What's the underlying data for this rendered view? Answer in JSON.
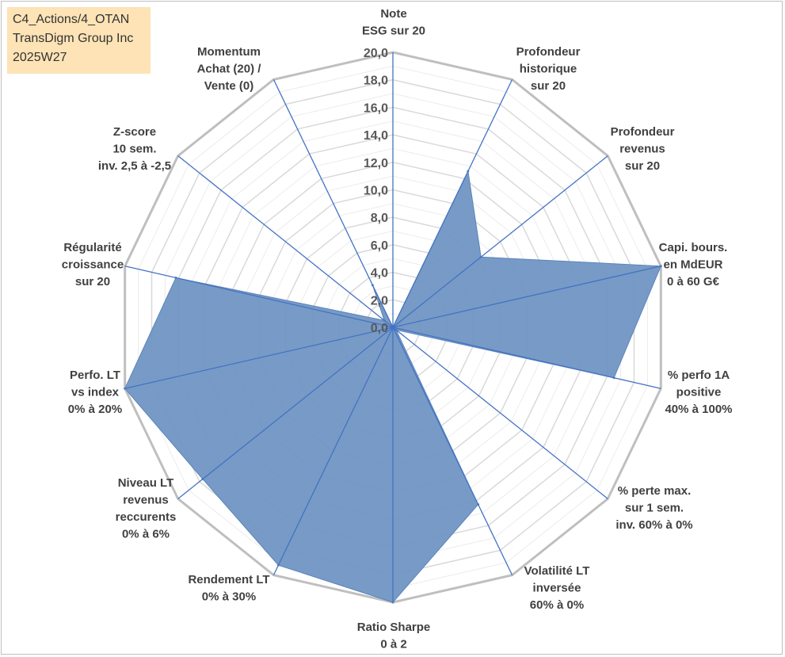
{
  "info": {
    "line1": "C4_Actions/4_OTAN",
    "line2": "TransDigm Group Inc",
    "line3": "2025W27"
  },
  "colors": {
    "fill": "#7096c3",
    "axis": "#4472c4",
    "outer_grid": "#bfbfbf",
    "inner_grid": "#d9d9d9"
  },
  "chart_data": {
    "type": "radar",
    "range": [
      0,
      20
    ],
    "tick_values": [
      0,
      2,
      4,
      6,
      8,
      10,
      12,
      14,
      16,
      18,
      20
    ],
    "tick_labels": [
      "0,0",
      "2,0",
      "4,0",
      "6,0",
      "8,0",
      "10,0",
      "12,0",
      "14,0",
      "16,0",
      "18,0",
      "20,0"
    ],
    "grid": true,
    "axes": [
      [
        "Note",
        "ESG sur 20"
      ],
      [
        "Profondeur",
        "historique",
        "sur 20"
      ],
      [
        "Profondeur",
        "revenus",
        "sur 20"
      ],
      [
        "Capi. bours.",
        "en MdEUR",
        "0 à 60 G€"
      ],
      [
        "% perfo 1A",
        "positive",
        "40% à 100%"
      ],
      [
        "% perte max.",
        "sur 1 sem.",
        "inv. 60% à 0%"
      ],
      [
        "Volatilité LT",
        "inversée",
        "60% à 0%"
      ],
      [
        "Ratio Sharpe",
        "0 à 2"
      ],
      [
        "Rendement LT",
        "0% à 30%"
      ],
      [
        "Niveau LT",
        "revenus",
        "reccurents",
        "0% à 6%"
      ],
      [
        "Perfo. LT",
        "vs index",
        "0% à 20%"
      ],
      [
        "Régularité",
        "croissance",
        "sur 20"
      ],
      [
        "Z-score",
        "10 sem.",
        "inv. 2,5 à -2,5"
      ],
      [
        "Momentum",
        "Achat (20) /",
        "Vente (0)"
      ]
    ],
    "values": [
      0,
      12.6,
      8.2,
      20,
      16.5,
      0.3,
      14.3,
      20,
      19.2,
      17.7,
      20,
      16.2,
      0.8,
      3.4
    ]
  }
}
